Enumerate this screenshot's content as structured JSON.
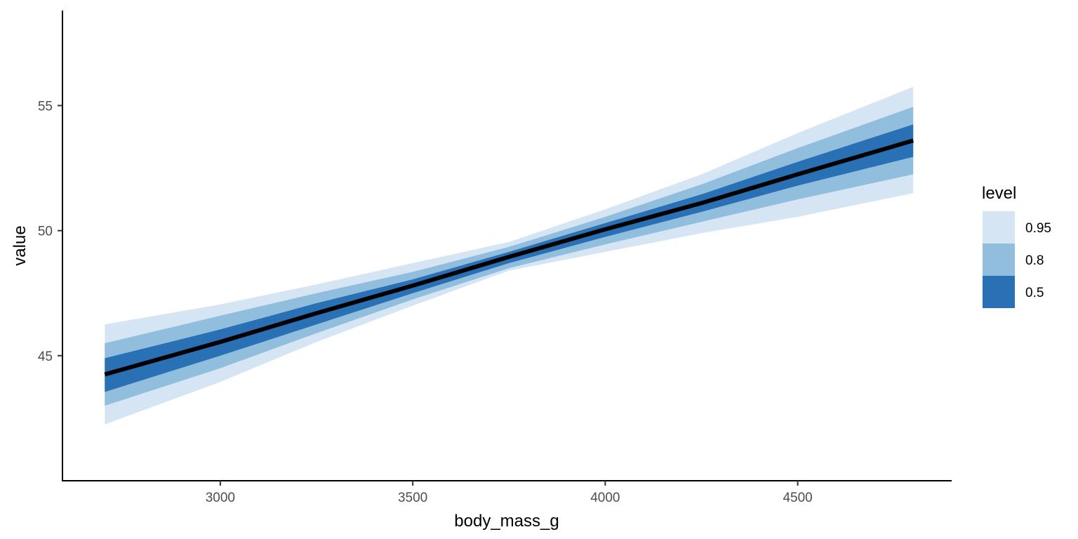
{
  "chart_data": {
    "type": "area",
    "xlabel": "body_mass_g",
    "ylabel": "value",
    "xlim": [
      2590,
      4900
    ],
    "ylim": [
      40.0,
      58.8
    ],
    "x_ticks": [
      3000,
      3500,
      4000,
      4500
    ],
    "x_tick_labels": [
      "3000",
      "3500",
      "4000",
      "4500"
    ],
    "y_ticks": [
      45,
      50,
      55
    ],
    "y_tick_labels": [
      "45",
      "50",
      "55"
    ],
    "grid": false,
    "legend": {
      "title": "level",
      "position": "right",
      "entries": [
        {
          "label": "0.95",
          "color": "#d6e5f4"
        },
        {
          "label": "0.8",
          "color": "#92bedd"
        },
        {
          "label": "0.5",
          "color": "#2a70b4"
        }
      ]
    },
    "x": [
      2700,
      3000,
      3250,
      3500,
      3750,
      4000,
      4250,
      4500,
      4800
    ],
    "median": [
      44.25,
      45.55,
      46.7,
      47.8,
      48.95,
      50.05,
      51.1,
      52.25,
      53.6
    ],
    "bands": [
      {
        "level": "0.95",
        "color": "#d6e5f4",
        "lower": [
          42.25,
          43.95,
          45.55,
          47.0,
          48.4,
          49.15,
          49.9,
          50.55,
          51.5
        ],
        "upper": [
          46.25,
          47.05,
          47.85,
          48.7,
          49.55,
          50.85,
          52.25,
          53.9,
          55.75
        ]
      },
      {
        "level": "0.8",
        "color": "#92bedd",
        "lower": [
          43.0,
          44.5,
          45.9,
          47.25,
          48.5,
          49.45,
          50.35,
          51.25,
          52.25
        ],
        "upper": [
          45.5,
          46.6,
          47.5,
          48.35,
          49.35,
          50.55,
          51.85,
          53.3,
          54.95
        ]
      },
      {
        "level": "0.5",
        "color": "#2a70b4",
        "lower": [
          43.55,
          45.0,
          46.25,
          47.5,
          48.7,
          49.75,
          50.75,
          51.8,
          52.95
        ],
        "upper": [
          44.9,
          46.05,
          47.1,
          48.05,
          49.15,
          50.3,
          51.45,
          52.75,
          54.25
        ]
      }
    ],
    "line_color": "#000000"
  }
}
